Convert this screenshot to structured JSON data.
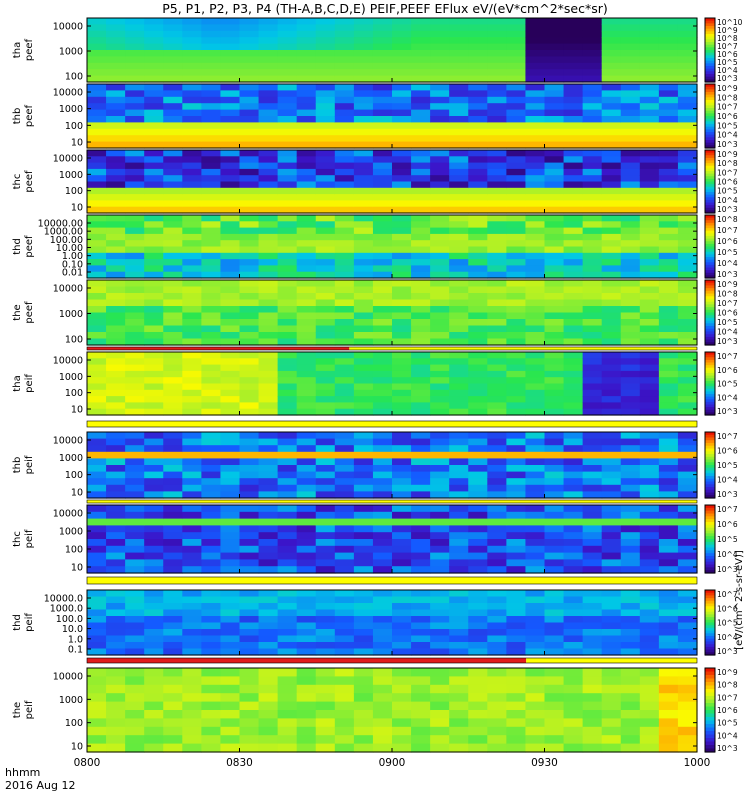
{
  "title": "P5, P1, P2, P3, P4 (TH-A,B,C,D,E) PEIF,PEEF EFlux eV/(eV*cm^2*sec*sr)",
  "colorbar_label": "[eV/(cm^2-s-sr-eV)]",
  "footer": {
    "time_label": "hhmm",
    "date_label": "2016 Aug 12"
  },
  "colors": {
    "bar_red": "#e11b1b",
    "bar_yellow": "#ffff00",
    "bar_black": "#000000"
  },
  "chart_data": {
    "type": "heatmap",
    "x_ticks": [
      "0800",
      "0830",
      "0900",
      "0930",
      "1000"
    ],
    "x_range": [
      "0800",
      "1000"
    ],
    "colorscale": "rainbow (blue-green-yellow-red), log scale",
    "panels": [
      {
        "id": "tha-peef",
        "label": [
          "tha",
          "peef"
        ],
        "y_ticks": [
          "10000",
          "1000",
          "100"
        ],
        "cb_ticks": [
          "10^10",
          "10^9",
          "10^8",
          "10^7",
          "10^6",
          "10^5",
          "10^4",
          "10^3"
        ]
      },
      {
        "id": "thb-peef",
        "label": [
          "thb",
          "peef"
        ],
        "y_ticks": [
          "10000",
          "1000",
          "100",
          "10"
        ],
        "cb_ticks": [
          "10^9",
          "10^8",
          "10^7",
          "10^6",
          "10^5",
          "10^4",
          "10^3"
        ]
      },
      {
        "id": "thc-peef",
        "label": [
          "thc",
          "peef"
        ],
        "y_ticks": [
          "10000",
          "1000",
          "100",
          "10"
        ],
        "cb_ticks": [
          "10^9",
          "10^8",
          "10^7",
          "10^6",
          "10^5",
          "10^4",
          "10^3"
        ]
      },
      {
        "id": "thd-peef",
        "label": [
          "thd",
          "peef"
        ],
        "y_ticks": [
          "10000.00",
          "1000.00",
          "100.00",
          "10.00",
          "1.00",
          "0.10",
          "0.01"
        ],
        "cb_ticks": [
          "10^8",
          "10^7",
          "10^6",
          "10^5",
          "10^4",
          "10^3"
        ]
      },
      {
        "id": "the-peef",
        "label": [
          "the",
          "peef"
        ],
        "y_ticks": [
          "10000",
          "1000",
          "100"
        ],
        "cb_ticks": [
          "10^9",
          "10^8",
          "10^7",
          "10^6",
          "10^5",
          "10^4",
          "10^3"
        ]
      },
      {
        "id": "tha-peif",
        "label": [
          "tha",
          "peif"
        ],
        "y_ticks": [
          "10000",
          "1000",
          "100",
          "10"
        ],
        "cb_ticks": [
          "10^7",
          "10^6",
          "10^5",
          "10^4",
          "10^3"
        ]
      },
      {
        "id": "thb-peif",
        "label": [
          "thb",
          "peif"
        ],
        "y_ticks": [
          "10000",
          "1000",
          "100",
          "10"
        ],
        "cb_ticks": [
          "10^7",
          "10^6",
          "10^5",
          "10^4",
          "10^3"
        ]
      },
      {
        "id": "thc-peif",
        "label": [
          "thc",
          "peif"
        ],
        "y_ticks": [
          "10000",
          "1000",
          "100",
          "10"
        ],
        "cb_ticks": [
          "10^7",
          "10^6",
          "10^5",
          "10^4",
          "10^3"
        ]
      },
      {
        "id": "thd-peif",
        "label": [
          "thd",
          "peif"
        ],
        "y_ticks": [
          "10000.0",
          "1000.0",
          "100.0",
          "10.0",
          "1.0",
          "0.1"
        ],
        "cb_ticks": [
          "10^7",
          "10^6",
          "10^5",
          "10^4",
          "10^3"
        ]
      },
      {
        "id": "the-peif",
        "label": [
          "the",
          "peif"
        ],
        "y_ticks": [
          "10000",
          "1000",
          "100",
          "10"
        ],
        "cb_ticks": [
          "10^9",
          "10^8",
          "10^7",
          "10^6",
          "10^5",
          "10^4",
          "10^3"
        ]
      }
    ]
  }
}
